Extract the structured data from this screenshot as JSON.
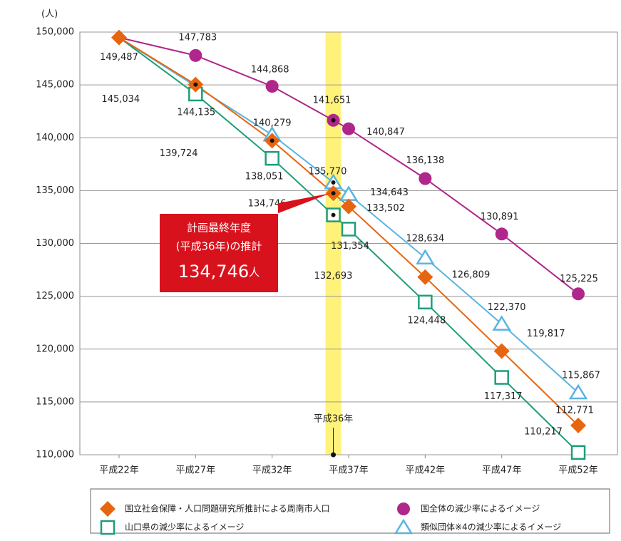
{
  "chart_data": {
    "type": "line",
    "y_unit": "(人)",
    "xlim": [
      19.44,
      54.56
    ],
    "xticks": [
      {
        "value": 22,
        "label": "平成22年"
      },
      {
        "value": 27,
        "label": "平成27年"
      },
      {
        "value": 32,
        "label": "平成32年"
      },
      {
        "value": 37,
        "label": "平成37年"
      },
      {
        "value": 42,
        "label": "平成42年"
      },
      {
        "value": 47,
        "label": "平成47年"
      },
      {
        "value": 52,
        "label": "平成52年"
      }
    ],
    "ylim": [
      110000,
      150000
    ],
    "yticks": [
      {
        "value": 110000,
        "label": "110,000"
      },
      {
        "value": 115000,
        "label": "115,000"
      },
      {
        "value": 120000,
        "label": "120,000"
      },
      {
        "value": 125000,
        "label": "125,000"
      },
      {
        "value": 130000,
        "label": "130,000"
      },
      {
        "value": 135000,
        "label": "135,000"
      },
      {
        "value": 140000,
        "label": "140,000"
      },
      {
        "value": 145000,
        "label": "145,000"
      },
      {
        "value": 150000,
        "label": "150,000"
      }
    ],
    "grid": true,
    "highlight": {
      "x": 36,
      "label": "平成36年",
      "color": "#fff27a"
    },
    "annotation": {
      "line1": "計画最終年度",
      "line2": "(平成36年)の推計",
      "value": "134,746",
      "unit": "人",
      "color": "#d8121d"
    },
    "series": [
      {
        "name": "国立社会保障・人口問題研究所推計による周南市人口",
        "color": "#e8650f",
        "marker": "diamond",
        "x": [
          22,
          27,
          32,
          36,
          37,
          42,
          47,
          52
        ],
        "values": [
          149487,
          145034,
          139724,
          134746,
          133502,
          126809,
          119817,
          112771
        ],
        "value_labels": [
          "149,487",
          "145,034",
          "139,724",
          "134,746",
          "133,502",
          "126,809",
          "119,817",
          "112,771"
        ]
      },
      {
        "name": "国全体の減少率によるイメージ",
        "color": "#b0268a",
        "marker": "circle",
        "x": [
          22,
          27,
          32,
          36,
          37,
          42,
          47,
          52
        ],
        "values": [
          149487,
          147783,
          144868,
          141651,
          140847,
          136138,
          130891,
          125225
        ],
        "value_labels": [
          null,
          "147,783",
          "144,868",
          "141,651",
          "140,847",
          "136,138",
          "130,891",
          "125,225"
        ]
      },
      {
        "name": "山口県の減少率によるイメージ",
        "color": "#1d9e7a",
        "marker": "square",
        "x": [
          22,
          27,
          32,
          36,
          37,
          42,
          47,
          52
        ],
        "values": [
          149487,
          144135,
          138051,
          132693,
          131354,
          124448,
          117317,
          110217
        ],
        "value_labels": [
          null,
          "144,135",
          "138,051",
          "132,693",
          "131,354",
          "124,448",
          "117,317",
          "110,217"
        ]
      },
      {
        "name": "類似団体※4の減少率によるイメージ",
        "color": "#5ab4e0",
        "marker": "triangle",
        "x": [
          22,
          32,
          36,
          37,
          42,
          47,
          52
        ],
        "values": [
          149487,
          140279,
          135770,
          134643,
          128634,
          122370,
          115867
        ],
        "value_labels": [
          null,
          "140,279",
          "135,770",
          "134,643",
          "128,634",
          "122,370",
          "115,867"
        ]
      }
    ]
  }
}
